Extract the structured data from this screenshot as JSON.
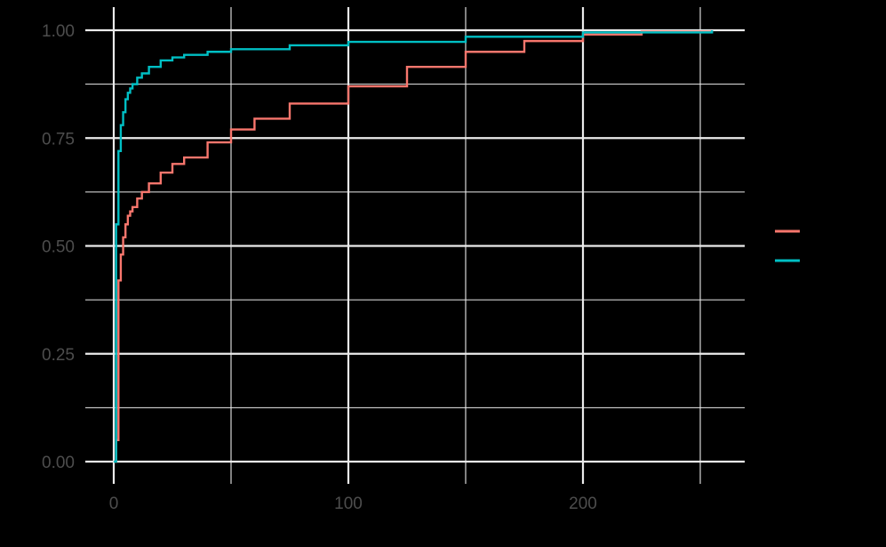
{
  "chart_data": {
    "type": "line",
    "subtype": "ecdf-step",
    "title": "",
    "xlabel": "",
    "ylabel": "",
    "xlim": [
      -12,
      268
    ],
    "ylim": [
      -0.03,
      1.03
    ],
    "x_ticks": [
      0,
      100,
      200
    ],
    "x_tick_labels": [
      "0",
      "100",
      "200"
    ],
    "x_minor_ticks": [
      50,
      150,
      250
    ],
    "y_ticks": [
      0.0,
      0.25,
      0.5,
      0.75,
      1.0
    ],
    "y_tick_labels": [
      "0.00",
      "0.25",
      "0.50",
      "0.75",
      "1.00"
    ],
    "y_minor_ticks": [
      0.125,
      0.375,
      0.625,
      0.875
    ],
    "grid": true,
    "legend_position": "right",
    "background": "#000000",
    "series": [
      {
        "name": "",
        "color": "#F8766D",
        "x": [
          0,
          1,
          2,
          3,
          4,
          5,
          6,
          7,
          8,
          10,
          12,
          15,
          20,
          25,
          30,
          40,
          50,
          60,
          75,
          100,
          125,
          150,
          175,
          200,
          225,
          255
        ],
        "y": [
          0.0,
          0.05,
          0.42,
          0.48,
          0.52,
          0.55,
          0.57,
          0.58,
          0.59,
          0.61,
          0.625,
          0.645,
          0.67,
          0.69,
          0.705,
          0.74,
          0.77,
          0.795,
          0.83,
          0.87,
          0.915,
          0.95,
          0.975,
          0.99,
          0.997,
          1.0
        ]
      },
      {
        "name": "",
        "color": "#00BFC4",
        "x": [
          0,
          1,
          2,
          3,
          4,
          5,
          6,
          7,
          8,
          10,
          12,
          15,
          20,
          25,
          30,
          40,
          50,
          75,
          100,
          150,
          200,
          255
        ],
        "y": [
          0.0,
          0.55,
          0.72,
          0.78,
          0.81,
          0.84,
          0.855,
          0.865,
          0.875,
          0.89,
          0.9,
          0.915,
          0.93,
          0.937,
          0.943,
          0.95,
          0.956,
          0.965,
          0.973,
          0.985,
          0.995,
          1.0
        ]
      }
    ]
  }
}
